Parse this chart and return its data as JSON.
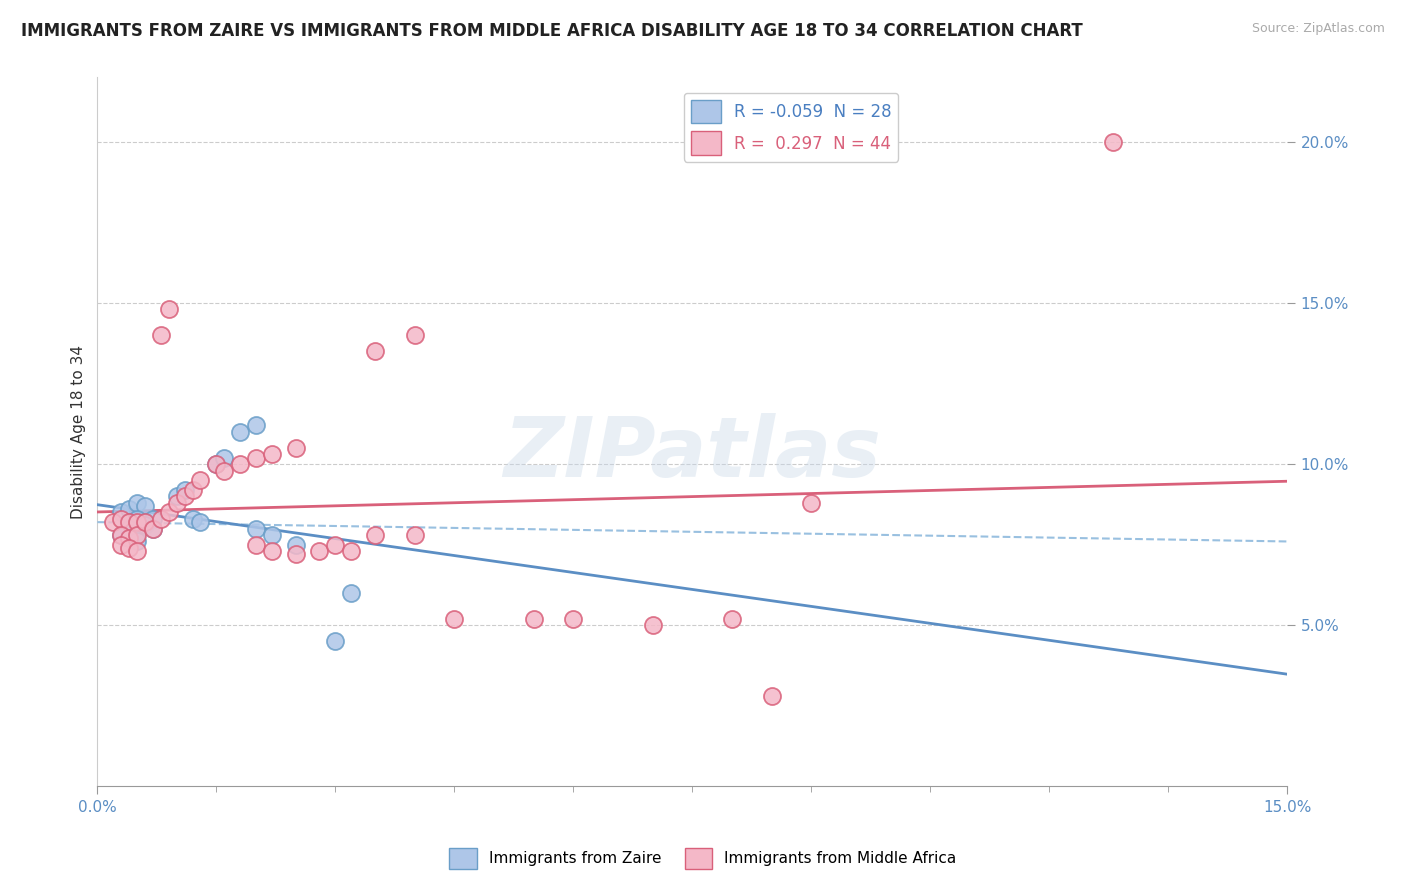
{
  "title": "IMMIGRANTS FROM ZAIRE VS IMMIGRANTS FROM MIDDLE AFRICA DISABILITY AGE 18 TO 34 CORRELATION CHART",
  "source": "Source: ZipAtlas.com",
  "ylabel": "Disability Age 18 to 34",
  "xlim": [
    0.0,
    0.15
  ],
  "ylim": [
    0.0,
    0.22
  ],
  "ytick_values": [
    0.05,
    0.1,
    0.15,
    0.2
  ],
  "ytick_labels": [
    "5.0%",
    "10.0%",
    "15.0%",
    "20.0%"
  ],
  "background_color": "#ffffff",
  "zaire_color": "#aec6e8",
  "zaire_edge": "#6a9ec8",
  "middle_africa_color": "#f4b8c8",
  "middle_africa_edge": "#d9607a",
  "grid_color": "#cccccc",
  "trend_zaire_color": "#5b8ec4",
  "trend_middle_color": "#d9607a",
  "dashed_color": "#99c0e0",
  "zaire_points": [
    [
      0.003,
      0.085
    ],
    [
      0.004,
      0.086
    ],
    [
      0.005,
      0.088
    ],
    [
      0.006,
      0.087
    ],
    [
      0.004,
      0.082
    ],
    [
      0.005,
      0.083
    ],
    [
      0.006,
      0.082
    ],
    [
      0.007,
      0.083
    ],
    [
      0.004,
      0.08
    ],
    [
      0.005,
      0.079
    ],
    [
      0.006,
      0.081
    ],
    [
      0.007,
      0.08
    ],
    [
      0.003,
      0.078
    ],
    [
      0.004,
      0.077
    ],
    [
      0.005,
      0.076
    ],
    [
      0.01,
      0.09
    ],
    [
      0.011,
      0.092
    ],
    [
      0.015,
      0.1
    ],
    [
      0.016,
      0.102
    ],
    [
      0.018,
      0.11
    ],
    [
      0.02,
      0.112
    ],
    [
      0.012,
      0.083
    ],
    [
      0.013,
      0.082
    ],
    [
      0.02,
      0.08
    ],
    [
      0.022,
      0.078
    ],
    [
      0.025,
      0.075
    ],
    [
      0.03,
      0.045
    ],
    [
      0.032,
      0.06
    ]
  ],
  "middle_africa_points": [
    [
      0.002,
      0.082
    ],
    [
      0.003,
      0.083
    ],
    [
      0.004,
      0.082
    ],
    [
      0.005,
      0.082
    ],
    [
      0.003,
      0.078
    ],
    [
      0.004,
      0.077
    ],
    [
      0.005,
      0.078
    ],
    [
      0.003,
      0.075
    ],
    [
      0.004,
      0.074
    ],
    [
      0.005,
      0.073
    ],
    [
      0.006,
      0.082
    ],
    [
      0.007,
      0.08
    ],
    [
      0.008,
      0.083
    ],
    [
      0.009,
      0.085
    ],
    [
      0.01,
      0.088
    ],
    [
      0.011,
      0.09
    ],
    [
      0.012,
      0.092
    ],
    [
      0.013,
      0.095
    ],
    [
      0.015,
      0.1
    ],
    [
      0.016,
      0.098
    ],
    [
      0.018,
      0.1
    ],
    [
      0.02,
      0.102
    ],
    [
      0.008,
      0.14
    ],
    [
      0.009,
      0.148
    ],
    [
      0.022,
      0.103
    ],
    [
      0.025,
      0.105
    ],
    [
      0.02,
      0.075
    ],
    [
      0.022,
      0.073
    ],
    [
      0.025,
      0.072
    ],
    [
      0.028,
      0.073
    ],
    [
      0.03,
      0.075
    ],
    [
      0.032,
      0.073
    ],
    [
      0.035,
      0.078
    ],
    [
      0.04,
      0.078
    ],
    [
      0.045,
      0.052
    ],
    [
      0.055,
      0.052
    ],
    [
      0.06,
      0.052
    ],
    [
      0.07,
      0.05
    ],
    [
      0.08,
      0.052
    ],
    [
      0.085,
      0.028
    ],
    [
      0.035,
      0.135
    ],
    [
      0.04,
      0.14
    ],
    [
      0.128,
      0.2
    ],
    [
      0.09,
      0.088
    ]
  ],
  "watermark_text": "ZIPatlas",
  "watermark_color": "#c8d8e8",
  "watermark_alpha": 0.4,
  "legend_zaire_label": "R = -0.059  N = 28",
  "legend_middle_label": "R =  0.297  N = 44",
  "legend_text_color_zaire": "#4a7fc1",
  "legend_text_color_middle": "#d9607a",
  "bottom_legend_zaire": "Immigrants from Zaire",
  "bottom_legend_middle": "Immigrants from Middle Africa",
  "title_fontsize": 12,
  "tick_label_color": "#5b8ec4",
  "tick_label_fontsize": 11
}
